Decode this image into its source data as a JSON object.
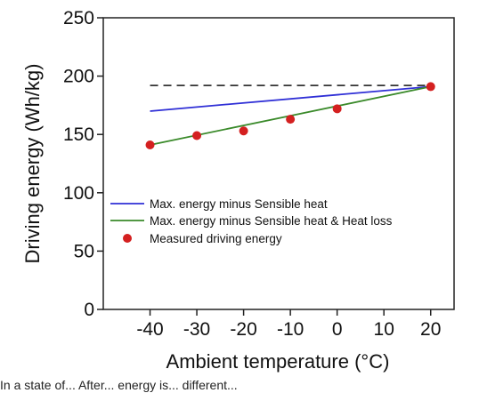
{
  "chart_data": {
    "type": "line",
    "xlabel": "Ambient temperature (°C)",
    "ylabel": "Driving energy (Wh/kg)",
    "xlim": [
      -50,
      25
    ],
    "ylim": [
      0,
      250
    ],
    "x_ticks": [
      -40,
      -30,
      -20,
      -10,
      0,
      10,
      20
    ],
    "y_ticks": [
      0,
      50,
      100,
      150,
      200,
      250
    ],
    "grid": false,
    "legend_position": "lower-center",
    "reference_line": {
      "style": "dashed",
      "color": "#333333",
      "x": [
        -40,
        20
      ],
      "y": [
        192,
        192
      ]
    },
    "series": [
      {
        "name": "Max. energy minus Sensible heat",
        "kind": "line",
        "color": "#2f2fd6",
        "x": [
          -40,
          20
        ],
        "y": [
          170,
          191
        ]
      },
      {
        "name": "Max. energy minus Sensible heat & Heat loss",
        "kind": "line",
        "color": "#3a8a2a",
        "x": [
          -40,
          20
        ],
        "y": [
          141,
          191
        ]
      },
      {
        "name": "Measured driving energy",
        "kind": "scatter",
        "color": "#d42020",
        "x": [
          -40,
          -30,
          -20,
          -10,
          0,
          20
        ],
        "y": [
          141,
          149,
          153,
          163,
          172,
          191
        ]
      }
    ]
  },
  "caption": "In a state of... After... energy is... different..."
}
